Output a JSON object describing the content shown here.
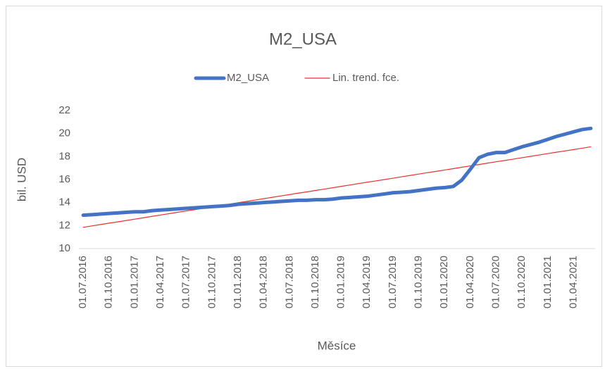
{
  "chart_data": {
    "type": "line",
    "title": "M2_USA",
    "xlabel": "Měsíce",
    "ylabel": "bil. USD",
    "categories": [
      "01.07.2016",
      null,
      null,
      "01.10.2016",
      null,
      null,
      "01.01.2017",
      null,
      null,
      "01.04.2017",
      null,
      null,
      "01.07.2017",
      null,
      null,
      "01.10.2017",
      null,
      null,
      "01.01.2018",
      null,
      null,
      "01.04.2018",
      null,
      null,
      "01.07.2018",
      null,
      null,
      "01.10.2018",
      null,
      null,
      "01.01.2019",
      null,
      null,
      "01.04.2019",
      null,
      null,
      "01.07.2019",
      null,
      null,
      "01.10.2019",
      null,
      null,
      "01.01.2020",
      null,
      null,
      "01.04.2020",
      null,
      null,
      "01.07.2020",
      null,
      null,
      "01.10.2020",
      null,
      null,
      "01.01.2021",
      null,
      null,
      "01.04.2021",
      null,
      null
    ],
    "series": [
      {
        "name": "M2_USA",
        "color": "#4472c4",
        "width": 5,
        "values": [
          12.9,
          12.95,
          13.0,
          13.05,
          13.1,
          13.15,
          13.2,
          13.2,
          13.3,
          13.35,
          13.4,
          13.45,
          13.5,
          13.55,
          13.6,
          13.65,
          13.7,
          13.75,
          13.85,
          13.9,
          13.95,
          14.0,
          14.05,
          14.1,
          14.15,
          14.2,
          14.2,
          14.25,
          14.25,
          14.3,
          14.4,
          14.45,
          14.5,
          14.55,
          14.65,
          14.75,
          14.85,
          14.9,
          14.95,
          15.05,
          15.15,
          15.25,
          15.3,
          15.4,
          15.95,
          16.9,
          17.9,
          18.2,
          18.35,
          18.35,
          18.6,
          18.85,
          19.05,
          19.25,
          19.5,
          19.75,
          19.95,
          20.15,
          20.35,
          20.45
        ]
      },
      {
        "name": "Lin. trend. fce.",
        "color": "#e8312f",
        "width": 1.2,
        "values": [
          11.85,
          11.97,
          12.09,
          12.21,
          12.32,
          12.44,
          12.56,
          12.68,
          12.8,
          12.92,
          13.04,
          13.16,
          13.27,
          13.39,
          13.51,
          13.63,
          13.75,
          13.87,
          13.99,
          14.1,
          14.22,
          14.34,
          14.46,
          14.58,
          14.7,
          14.82,
          14.93,
          15.05,
          15.17,
          15.29,
          15.41,
          15.53,
          15.65,
          15.77,
          15.88,
          16.0,
          16.12,
          16.24,
          16.36,
          16.48,
          16.6,
          16.71,
          16.83,
          16.95,
          17.07,
          17.19,
          17.31,
          17.43,
          17.55,
          17.66,
          17.78,
          17.9,
          18.02,
          18.14,
          18.26,
          18.38,
          18.49,
          18.61,
          18.73,
          18.85
        ]
      }
    ],
    "ylim": [
      10,
      22
    ],
    "yticks": [
      10,
      12,
      14,
      16,
      18,
      20,
      22
    ],
    "grid": false,
    "legend": "top"
  }
}
